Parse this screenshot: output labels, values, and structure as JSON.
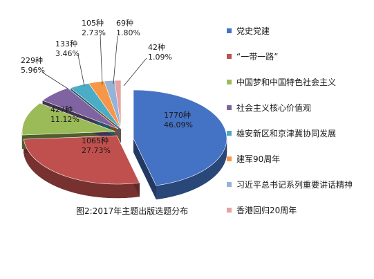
{
  "chart_data": {
    "type": "pie",
    "style": "3d-exploded",
    "caption": "图2:2017年主题出版选题分布",
    "legend_position": "right",
    "series": [
      {
        "name": "党史党建",
        "count_label": "1770种",
        "percent_label": "46.09%",
        "value": 46.09,
        "color": "#4472c4"
      },
      {
        "name": "“一带一路”",
        "count_label": "1065种",
        "percent_label": "27.73%",
        "value": 27.73,
        "color": "#c0504d"
      },
      {
        "name": "中国梦和中国特色社会主义",
        "count_label": "427种",
        "percent_label": "11.12%",
        "value": 11.12,
        "color": "#9bbb59"
      },
      {
        "name": "社会主义核心价值观",
        "count_label": "229种",
        "percent_label": "5.96%",
        "value": 5.96,
        "color": "#8064a2"
      },
      {
        "name": "雄安新区和京津冀协同发展",
        "count_label": "133种",
        "percent_label": "3.46%",
        "value": 3.46,
        "color": "#4bacc6"
      },
      {
        "name": "建军90周年",
        "count_label": "105种",
        "percent_label": "2.73%",
        "value": 2.73,
        "color": "#f79646"
      },
      {
        "name": "习近平总书记系列重要讲话精神",
        "count_label": "69种",
        "percent_label": "1.80%",
        "value": 1.8,
        "color": "#95b3d7"
      },
      {
        "name": "香港回归20周年",
        "count_label": "42种",
        "percent_label": "1.09%",
        "value": 1.09,
        "color": "#e6a1a0"
      }
    ]
  }
}
